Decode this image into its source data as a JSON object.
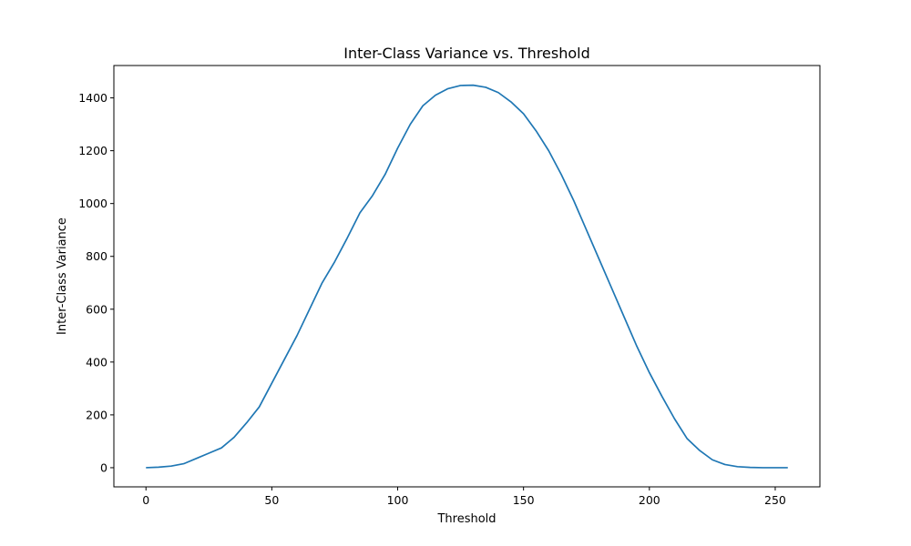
{
  "chart_data": {
    "type": "line",
    "title": "Inter-Class Variance vs. Threshold",
    "xlabel": "Threshold",
    "ylabel": "Inter-Class Variance",
    "xlim": [
      -12.75,
      267.75
    ],
    "ylim": [
      -72.5,
      1522.5
    ],
    "xticks": [
      0,
      50,
      100,
      150,
      200,
      250
    ],
    "yticks": [
      0,
      200,
      400,
      600,
      800,
      1000,
      1200,
      1400
    ],
    "grid": false,
    "legend": "none",
    "series": [
      {
        "color": "#1f77b4",
        "x": [
          0,
          5,
          10,
          15,
          20,
          25,
          30,
          35,
          40,
          45,
          50,
          55,
          60,
          65,
          70,
          75,
          80,
          85,
          90,
          95,
          100,
          105,
          110,
          115,
          120,
          125,
          130,
          135,
          140,
          145,
          150,
          155,
          160,
          165,
          170,
          175,
          180,
          185,
          190,
          195,
          200,
          205,
          210,
          215,
          220,
          225,
          230,
          235,
          240,
          245,
          250,
          255
        ],
        "y": [
          0,
          2,
          6,
          15,
          35,
          55,
          75,
          115,
          170,
          230,
          320,
          410,
          500,
          600,
          700,
          780,
          870,
          965,
          1030,
          1110,
          1210,
          1300,
          1370,
          1410,
          1435,
          1447,
          1448,
          1440,
          1420,
          1385,
          1340,
          1275,
          1200,
          1110,
          1010,
          900,
          790,
          680,
          570,
          460,
          360,
          270,
          185,
          110,
          65,
          30,
          12,
          4,
          1,
          0,
          0,
          0
        ]
      }
    ]
  }
}
